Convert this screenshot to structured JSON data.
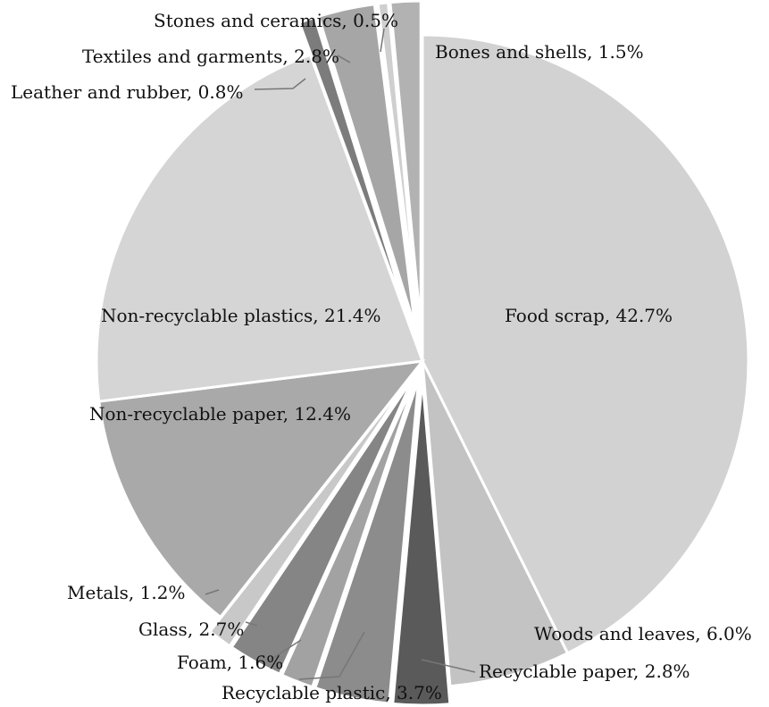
{
  "chart_data": {
    "type": "pie",
    "title": "",
    "slices": [
      {
        "label": "Food scrap, 42.7%",
        "value": 42.7,
        "color": "#d2d2d2"
      },
      {
        "label": "Woods and leaves, 6.0%",
        "value": 6.0,
        "color": "#c3c3c3"
      },
      {
        "label": "Recyclable paper, 2.8%",
        "value": 2.8,
        "color": "#5a5a5a"
      },
      {
        "label": "Recyclable plastic, 3.7%",
        "value": 3.7,
        "color": "#8c8c8c"
      },
      {
        "label": "Foam, 1.6%",
        "value": 1.6,
        "color": "#a2a2a2"
      },
      {
        "label": "Glass, 2.7%",
        "value": 2.7,
        "color": "#858585"
      },
      {
        "label": "Metals, 1.2%",
        "value": 1.2,
        "color": "#c8c8c8"
      },
      {
        "label": "Non-recyclable paper, 12.4%",
        "value": 12.4,
        "color": "#a9a9a9"
      },
      {
        "label": "Non-recyclable plastics, 21.4%",
        "value": 21.4,
        "color": "#d5d5d5"
      },
      {
        "label": "Leather and rubber, 0.8%",
        "value": 0.8,
        "color": "#7c7c7c"
      },
      {
        "label": "Textiles and garments, 2.8%",
        "value": 2.8,
        "color": "#a6a6a6"
      },
      {
        "label": "Stones and ceramics, 0.5%",
        "value": 0.5,
        "color": "#cfcfcf"
      },
      {
        "label": "Bones and shells, 1.5%",
        "value": 1.5,
        "color": "#b2b2b2"
      }
    ]
  }
}
